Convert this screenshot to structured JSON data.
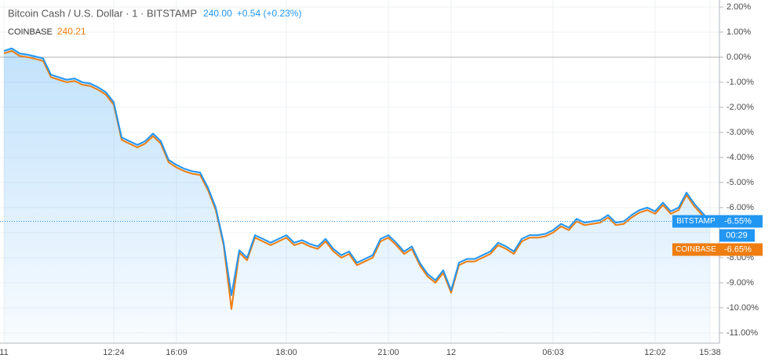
{
  "chart_data": {
    "type": "line",
    "title": "Bitcoin Cash / U.S. Dollar · 1 · BITSTAMP",
    "price": "240.00",
    "change": "+0.54 (+0.23%)",
    "compare_price": "240.21",
    "countdown": "00:29",
    "categories": [
      "11",
      null,
      null,
      null,
      null,
      null,
      null,
      null,
      null,
      null,
      null,
      null,
      null,
      null,
      "12:24",
      null,
      null,
      null,
      null,
      null,
      null,
      null,
      "16:09",
      null,
      null,
      null,
      null,
      null,
      null,
      null,
      null,
      null,
      null,
      null,
      null,
      null,
      "18:00",
      null,
      null,
      null,
      null,
      null,
      null,
      null,
      null,
      null,
      null,
      null,
      null,
      "21:00",
      null,
      null,
      null,
      null,
      null,
      null,
      null,
      "12",
      null,
      null,
      null,
      null,
      null,
      null,
      null,
      null,
      null,
      null,
      null,
      null,
      "06:03",
      null,
      null,
      null,
      null,
      null,
      null,
      null,
      null,
      null,
      null,
      null,
      null,
      "12:02",
      null,
      null,
      null,
      null,
      null,
      null,
      "15:38"
    ],
    "series": [
      {
        "name": "BITSTAMP",
        "color": "#2196f3",
        "last_label": "-6.55%",
        "values": [
          0.25,
          0.35,
          0.15,
          0.1,
          0.03,
          -0.05,
          -0.7,
          -0.8,
          -0.9,
          -0.85,
          -1.0,
          -1.05,
          -1.2,
          -1.4,
          -1.8,
          -3.2,
          -3.35,
          -3.5,
          -3.35,
          -3.05,
          -3.35,
          -4.1,
          -4.3,
          -4.45,
          -4.55,
          -4.6,
          -5.2,
          -6.0,
          -7.4,
          -9.5,
          -7.7,
          -8.0,
          -7.1,
          -7.25,
          -7.4,
          -7.25,
          -7.1,
          -7.4,
          -7.3,
          -7.45,
          -7.55,
          -7.25,
          -7.65,
          -7.9,
          -7.75,
          -8.2,
          -8.05,
          -7.9,
          -7.25,
          -7.1,
          -7.4,
          -7.75,
          -7.55,
          -8.2,
          -8.65,
          -8.9,
          -8.5,
          -9.3,
          -8.2,
          -8.05,
          -8.05,
          -7.9,
          -7.75,
          -7.4,
          -7.55,
          -7.75,
          -7.25,
          -7.1,
          -7.1,
          -7.05,
          -6.9,
          -6.65,
          -6.8,
          -6.45,
          -6.6,
          -6.55,
          -6.5,
          -6.3,
          -6.6,
          -6.55,
          -6.3,
          -6.1,
          -6.0,
          -6.15,
          -5.8,
          -6.15,
          -6.0,
          -5.4,
          -5.85,
          -6.2,
          -6.55
        ]
      },
      {
        "name": "COINBASE",
        "color": "#ef7d0f",
        "last_label": "-6.65%",
        "values": [
          0.15,
          0.25,
          0.05,
          0.0,
          -0.07,
          -0.15,
          -0.8,
          -0.9,
          -1.0,
          -0.95,
          -1.1,
          -1.15,
          -1.3,
          -1.5,
          -1.9,
          -3.3,
          -3.45,
          -3.6,
          -3.45,
          -3.15,
          -3.45,
          -4.2,
          -4.4,
          -4.55,
          -4.65,
          -4.7,
          -5.3,
          -6.1,
          -7.5,
          -10.05,
          -7.8,
          -8.1,
          -7.2,
          -7.35,
          -7.5,
          -7.35,
          -7.2,
          -7.5,
          -7.4,
          -7.55,
          -7.65,
          -7.35,
          -7.75,
          -8.0,
          -7.85,
          -8.3,
          -8.15,
          -8.0,
          -7.35,
          -7.2,
          -7.5,
          -7.85,
          -7.65,
          -8.3,
          -8.75,
          -9.0,
          -8.6,
          -9.4,
          -8.3,
          -8.15,
          -8.15,
          -8.0,
          -7.85,
          -7.5,
          -7.65,
          -7.85,
          -7.35,
          -7.2,
          -7.2,
          -7.15,
          -7.0,
          -6.75,
          -6.9,
          -6.55,
          -6.7,
          -6.65,
          -6.6,
          -6.4,
          -6.7,
          -6.65,
          -6.4,
          -6.2,
          -6.1,
          -6.25,
          -5.9,
          -6.25,
          -6.1,
          -5.5,
          -5.95,
          -6.3,
          -6.65
        ]
      }
    ],
    "ylim": [
      -11.41,
      2.28
    ],
    "yticks": [
      {
        "value": 2,
        "label": "2.00%"
      },
      {
        "value": 1,
        "label": "1.00%"
      },
      {
        "value": 0,
        "label": "0.00%"
      },
      {
        "value": -1,
        "label": "-1.00%"
      },
      {
        "value": -2,
        "label": "-2.00%"
      },
      {
        "value": -3,
        "label": "-3.00%"
      },
      {
        "value": -4,
        "label": "-4.00%"
      },
      {
        "value": -5,
        "label": "-5.00%"
      },
      {
        "value": -6,
        "label": "-6.00%"
      },
      {
        "value": -7,
        "label": "-7.00%"
      },
      {
        "value": -8,
        "label": "-8.00%"
      },
      {
        "value": -9,
        "label": "-9.00%"
      },
      {
        "value": -10,
        "label": "-10.00%"
      },
      {
        "value": -11,
        "label": "-11.00%"
      }
    ],
    "grid": true
  }
}
